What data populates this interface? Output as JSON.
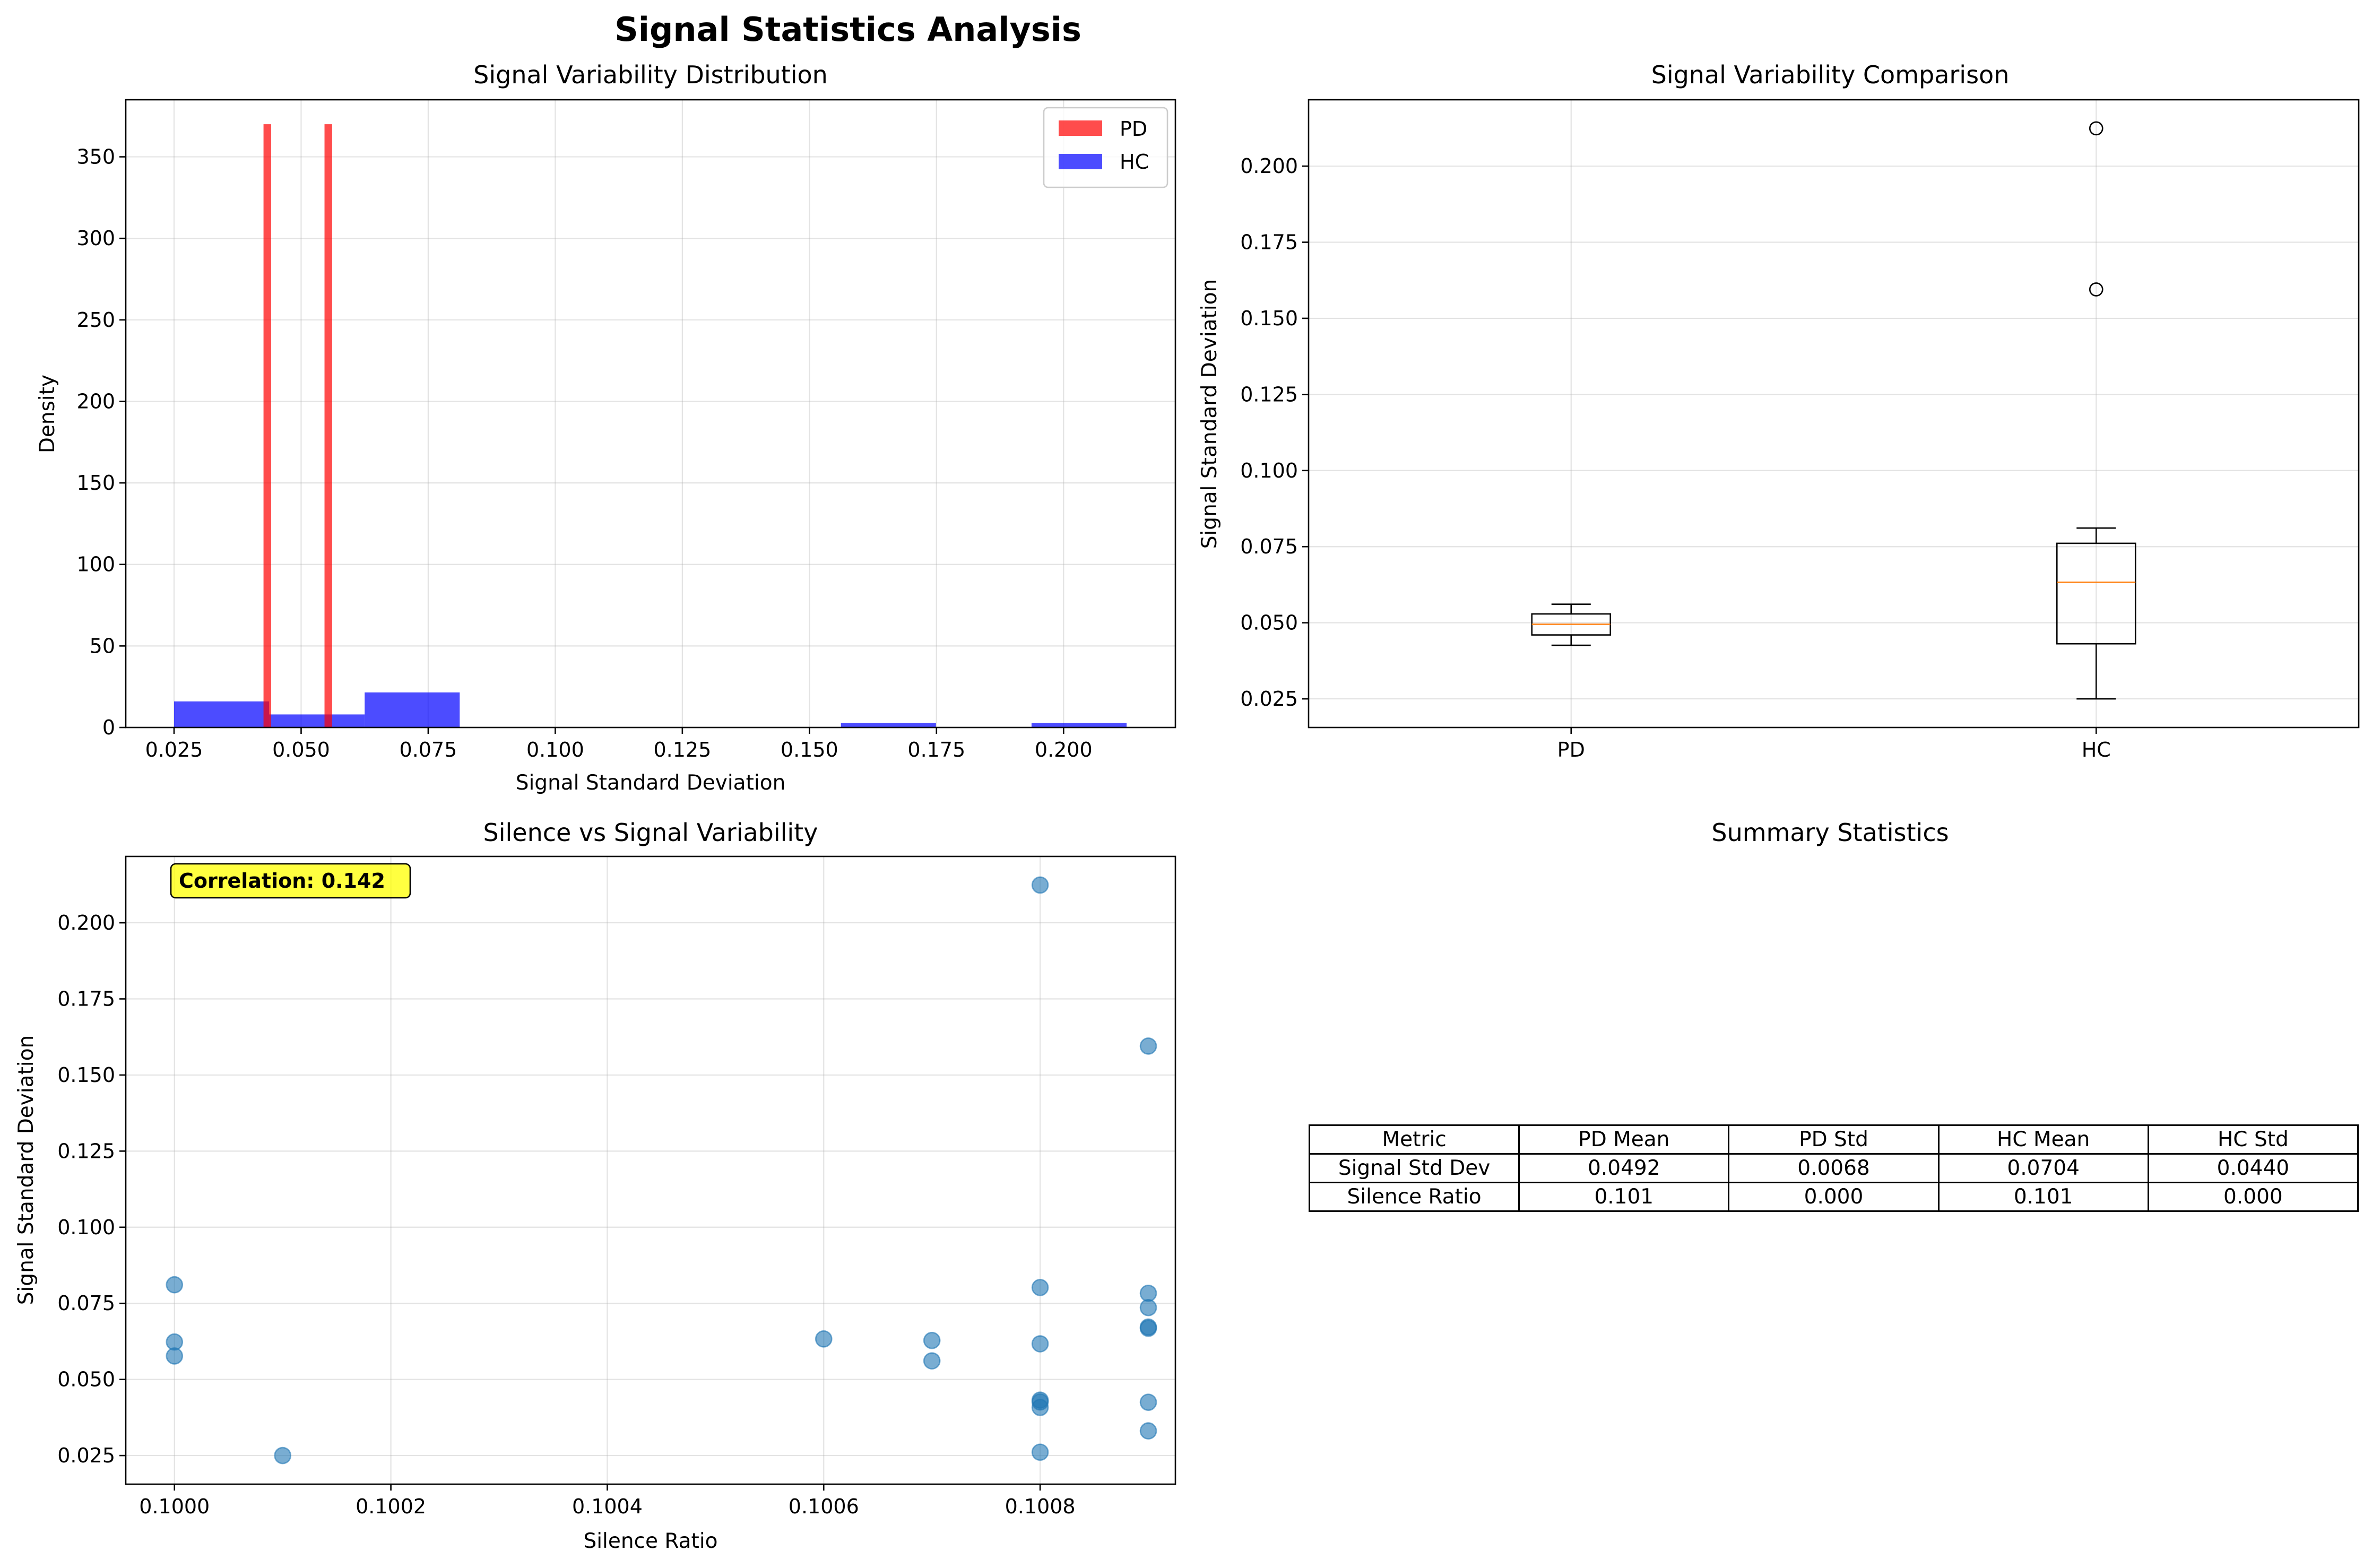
{
  "suptitle": "Signal Statistics Analysis",
  "colors": {
    "pd": "#ff0000",
    "hc": "#0000ff",
    "scatter": "#1f77b4",
    "median": "#ff7f0e",
    "annot_bg": "#ffff00"
  },
  "chart_data": [
    {
      "type": "histogram",
      "title": "Signal Variability Distribution",
      "xlabel": "Signal Standard Deviation",
      "ylabel": "Density",
      "xlim": [
        0.0155,
        0.222
      ],
      "ylim": [
        0,
        385
      ],
      "xticks": [
        "0.025",
        "0.050",
        "0.075",
        "0.100",
        "0.125",
        "0.150",
        "0.175",
        "0.200"
      ],
      "xtick_values": [
        0.025,
        0.05,
        0.075,
        0.1,
        0.125,
        0.15,
        0.175,
        0.2
      ],
      "yticks": [
        "0",
        "50",
        "100",
        "150",
        "200",
        "250",
        "300",
        "350"
      ],
      "ytick_values": [
        0,
        50,
        100,
        150,
        200,
        250,
        300,
        350
      ],
      "grid": true,
      "legend_position": "upper right",
      "series": [
        {
          "name": "PD",
          "color": "#ff0000",
          "alpha": 0.7,
          "bins": [
            [
              0.0426,
              0.0441,
              370
            ],
            [
              0.0441,
              0.0546,
              0
            ],
            [
              0.0546,
              0.0561,
              370
            ]
          ]
        },
        {
          "name": "HC",
          "color": "#0000ff",
          "alpha": 0.7,
          "bins": [
            [
              0.025,
              0.0437,
              16
            ],
            [
              0.0437,
              0.0625,
              8
            ],
            [
              0.0625,
              0.0812,
              21.5
            ],
            [
              0.0812,
              0.1,
              0
            ],
            [
              0.1,
              0.1187,
              0
            ],
            [
              0.1187,
              0.1374,
              0
            ],
            [
              0.1374,
              0.1562,
              0
            ],
            [
              0.1562,
              0.1749,
              2.7
            ],
            [
              0.1749,
              0.1937,
              0
            ],
            [
              0.1937,
              0.2124,
              2.7
            ]
          ]
        }
      ]
    },
    {
      "type": "box",
      "title": "Signal Variability Comparison",
      "xlabel": "",
      "ylabel": "Signal Standard Deviation",
      "categories": [
        "PD",
        "HC"
      ],
      "ylim": [
        0.0156,
        0.2218
      ],
      "yticks": [
        "0.025",
        "0.050",
        "0.075",
        "0.100",
        "0.125",
        "0.150",
        "0.175",
        "0.200"
      ],
      "ytick_values": [
        0.025,
        0.05,
        0.075,
        0.1,
        0.125,
        0.15,
        0.175,
        0.2
      ],
      "grid": true,
      "boxes": [
        {
          "name": "PD",
          "whisker_low": 0.0426,
          "q1": 0.046,
          "median": 0.0495,
          "q3": 0.0529,
          "whisker_high": 0.0561,
          "outliers": []
        },
        {
          "name": "HC",
          "whisker_low": 0.025,
          "q1": 0.0431,
          "median": 0.0633,
          "q3": 0.0761,
          "whisker_high": 0.0811,
          "outliers": [
            0.1595,
            0.2124
          ]
        }
      ]
    },
    {
      "type": "scatter",
      "title": "Silence vs Signal Variability",
      "xlabel": "Silence Ratio",
      "ylabel": "Signal Standard Deviation",
      "xlim": [
        0.099955,
        0.100925
      ],
      "ylim": [
        0.0156,
        0.2218
      ],
      "xticks": [
        "0.1000",
        "0.1002",
        "0.1004",
        "0.1006",
        "0.1008"
      ],
      "xtick_values": [
        0.1,
        0.1002,
        0.1004,
        0.1006,
        0.1008
      ],
      "yticks": [
        "0.025",
        "0.050",
        "0.075",
        "0.100",
        "0.125",
        "0.150",
        "0.175",
        "0.200"
      ],
      "ytick_values": [
        0.025,
        0.05,
        0.075,
        0.1,
        0.125,
        0.15,
        0.175,
        0.2
      ],
      "grid": true,
      "annotation": "Correlation: 0.142",
      "points": [
        [
          0.1,
          0.0811
        ],
        [
          0.1,
          0.0623
        ],
        [
          0.1,
          0.0577
        ],
        [
          0.1001,
          0.025
        ],
        [
          0.1006,
          0.0633
        ],
        [
          0.1007,
          0.0628
        ],
        [
          0.1007,
          0.0561
        ],
        [
          0.1008,
          0.2124
        ],
        [
          0.1008,
          0.0802
        ],
        [
          0.1008,
          0.0617
        ],
        [
          0.1008,
          0.0432
        ],
        [
          0.1008,
          0.0426
        ],
        [
          0.1008,
          0.0408
        ],
        [
          0.1008,
          0.0261
        ],
        [
          0.1009,
          0.1595
        ],
        [
          0.1009,
          0.0783
        ],
        [
          0.1009,
          0.0736
        ],
        [
          0.1009,
          0.0672
        ],
        [
          0.1009,
          0.0668
        ],
        [
          0.1009,
          0.0425
        ],
        [
          0.1009,
          0.0331
        ]
      ]
    },
    {
      "type": "table",
      "title": "Summary Statistics",
      "columns": [
        "Metric",
        "PD Mean",
        "PD Std",
        "HC Mean",
        "HC Std"
      ],
      "rows": [
        [
          "Signal Std Dev",
          "0.0492",
          "0.0068",
          "0.0704",
          "0.0440"
        ],
        [
          "Silence Ratio",
          "0.101",
          "0.000",
          "0.101",
          "0.000"
        ]
      ]
    }
  ]
}
